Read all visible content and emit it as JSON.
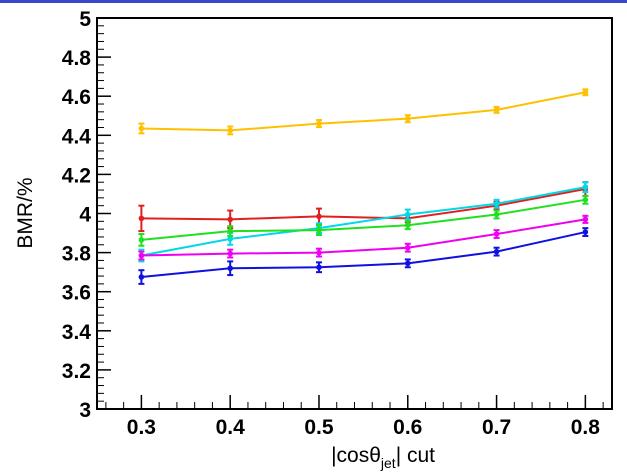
{
  "chart_data": {
    "type": "line",
    "xlabel": "|cosθjet| cut",
    "xlabel_parts": {
      "before": "|cosθ",
      "subscript": "jet",
      "after": "| cut"
    },
    "ylabel": "BMR/%",
    "xlim": [
      0.25,
      0.83
    ],
    "ylim": [
      3,
      5
    ],
    "x": [
      0.3,
      0.4,
      0.5,
      0.6,
      0.7,
      0.8
    ],
    "x_tick_labels": [
      "0.3",
      "0.4",
      "0.5",
      "0.6",
      "0.7",
      "0.8"
    ],
    "y_ticks": [
      3,
      3.2,
      3.4,
      3.6,
      3.8,
      4,
      4.2,
      4.4,
      4.6,
      4.8,
      5
    ],
    "y_tick_labels": [
      "3",
      "3.2",
      "3.4",
      "3.6",
      "3.8",
      "4",
      "4.2",
      "4.4",
      "4.6",
      "4.8",
      "5"
    ],
    "grid": false,
    "series": [
      {
        "color": "#ffc000",
        "values": [
          4.435,
          4.425,
          4.46,
          4.485,
          4.53,
          4.62
        ],
        "errors": [
          0.025,
          0.02,
          0.018,
          0.018,
          0.015,
          0.015
        ]
      },
      {
        "color": "#e02020",
        "values": [
          3.975,
          3.97,
          3.985,
          3.975,
          4.04,
          4.125
        ],
        "errors": [
          0.065,
          0.045,
          0.04,
          0.02,
          0.02,
          0.035
        ]
      },
      {
        "color": "#00d8e8",
        "values": [
          3.785,
          3.87,
          3.925,
          3.995,
          4.05,
          4.135
        ],
        "errors": [
          0.03,
          0.03,
          0.025,
          0.025,
          0.02,
          0.025
        ]
      },
      {
        "color": "#20e020",
        "values": [
          3.865,
          3.91,
          3.915,
          3.94,
          3.995,
          4.07
        ],
        "errors": [
          0.03,
          0.025,
          0.025,
          0.02,
          0.02,
          0.02
        ]
      },
      {
        "color": "#f000f0",
        "values": [
          3.785,
          3.795,
          3.8,
          3.825,
          3.895,
          3.97
        ],
        "errors": [
          0.02,
          0.02,
          0.02,
          0.02,
          0.02,
          0.018
        ]
      },
      {
        "color": "#1010e0",
        "values": [
          3.675,
          3.72,
          3.725,
          3.745,
          3.805,
          3.905
        ],
        "errors": [
          0.035,
          0.035,
          0.025,
          0.02,
          0.02,
          0.02
        ]
      }
    ]
  }
}
